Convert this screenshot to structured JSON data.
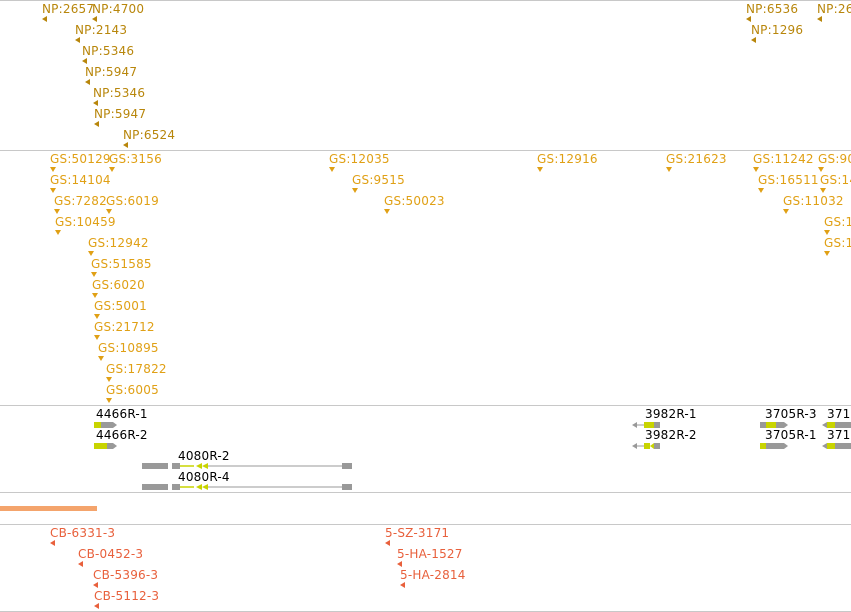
{
  "colors": {
    "np_marker": "#b8860b",
    "gs_marker": "#e0a015",
    "cb_marker": "#e8603c",
    "gene_body": "#999999",
    "gene_exon": "#c8d400",
    "coverage_bar": "#f4a46c",
    "separator": "#c8c8c8"
  },
  "np_track": {
    "features": [
      {
        "label": "NP:2657"
      },
      {
        "label": "NP:4700"
      },
      {
        "label": "NP:2143"
      },
      {
        "label": "NP:5346"
      },
      {
        "label": "NP:5947"
      },
      {
        "label": "NP:5346"
      },
      {
        "label": "NP:5947"
      },
      {
        "label": "NP:6524"
      },
      {
        "label": "NP:6536"
      },
      {
        "label": "NP:1296"
      },
      {
        "label": "NP:26"
      }
    ]
  },
  "gs_track": {
    "features": [
      {
        "label": "GS:50129"
      },
      {
        "label": "GS:3156"
      },
      {
        "label": "GS:12035"
      },
      {
        "label": "GS:12916"
      },
      {
        "label": "GS:21623"
      },
      {
        "label": "GS:11242"
      },
      {
        "label": "GS:90"
      },
      {
        "label": "GS:14104"
      },
      {
        "label": "GS:9515"
      },
      {
        "label": "GS:16511"
      },
      {
        "label": "GS:14"
      },
      {
        "label": "GS:7282"
      },
      {
        "label": "GS:6019"
      },
      {
        "label": "GS:50023"
      },
      {
        "label": "GS:11032"
      },
      {
        "label": "GS:10459"
      },
      {
        "label": "GS:1"
      },
      {
        "label": "GS:12942"
      },
      {
        "label": "GS:1"
      },
      {
        "label": "GS:51585"
      },
      {
        "label": "GS:6020"
      },
      {
        "label": "GS:5001"
      },
      {
        "label": "GS:21712"
      },
      {
        "label": "GS:10895"
      },
      {
        "label": "GS:17822"
      },
      {
        "label": "GS:6005"
      }
    ]
  },
  "gene_track": {
    "genes": [
      {
        "label": "4466R-1"
      },
      {
        "label": "4466R-2"
      },
      {
        "label": "4080R-2"
      },
      {
        "label": "4080R-4"
      },
      {
        "label": "3982R-1"
      },
      {
        "label": "3982R-2"
      },
      {
        "label": "3705R-3"
      },
      {
        "label": "3705R-1"
      },
      {
        "label": "371"
      },
      {
        "label": "371"
      }
    ]
  },
  "cb_track": {
    "features": [
      {
        "label": "CB-6331-3"
      },
      {
        "label": "CB-0452-3"
      },
      {
        "label": "CB-5396-3"
      },
      {
        "label": "CB-5112-3"
      },
      {
        "label": "5-SZ-3171"
      },
      {
        "label": "5-HA-1527"
      },
      {
        "label": "5-HA-2814"
      }
    ]
  }
}
